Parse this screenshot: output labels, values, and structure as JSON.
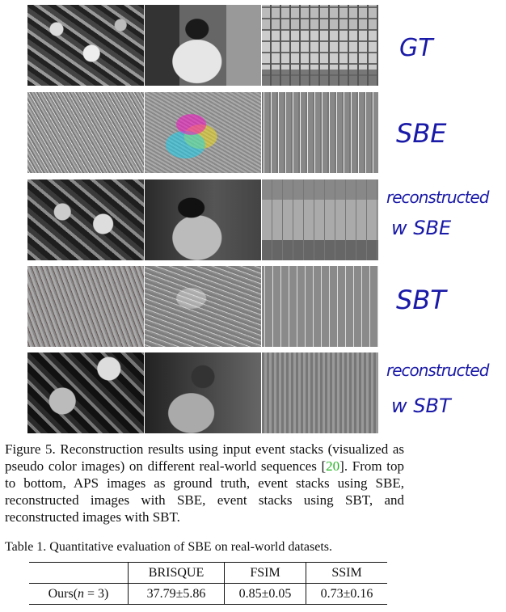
{
  "handwritten_labels": [
    {
      "line1": "GT",
      "line2": ""
    },
    {
      "line1": "SBE",
      "line2": ""
    },
    {
      "line1": "reconstructed",
      "line2": "w SBE"
    },
    {
      "line1": "SBT",
      "line2": ""
    },
    {
      "line1": "reconstructed",
      "line2": "w SBT"
    }
  ],
  "figure_caption": {
    "prefix": "Figure 5. Reconstruction results using input event stacks (visualized as pseudo color images) on different real-world sequences [",
    "ref": "20",
    "suffix": "]. From top to bottom, APS images as ground truth, event stacks using SBE, reconstructed images with SBE, event stacks using SBT, and reconstructed images with SBT."
  },
  "table": {
    "caption": "Table 1. Quantitative evaluation of SBE on real-world datasets.",
    "headers": [
      "",
      "BRISQUE",
      "FSIM",
      "SSIM"
    ],
    "row_label_pre": "Ours(",
    "row_label_var": "n",
    "row_label_post": " = 3)",
    "values": [
      "37.79±5.86",
      "0.85±0.05",
      "0.73±0.16"
    ]
  }
}
